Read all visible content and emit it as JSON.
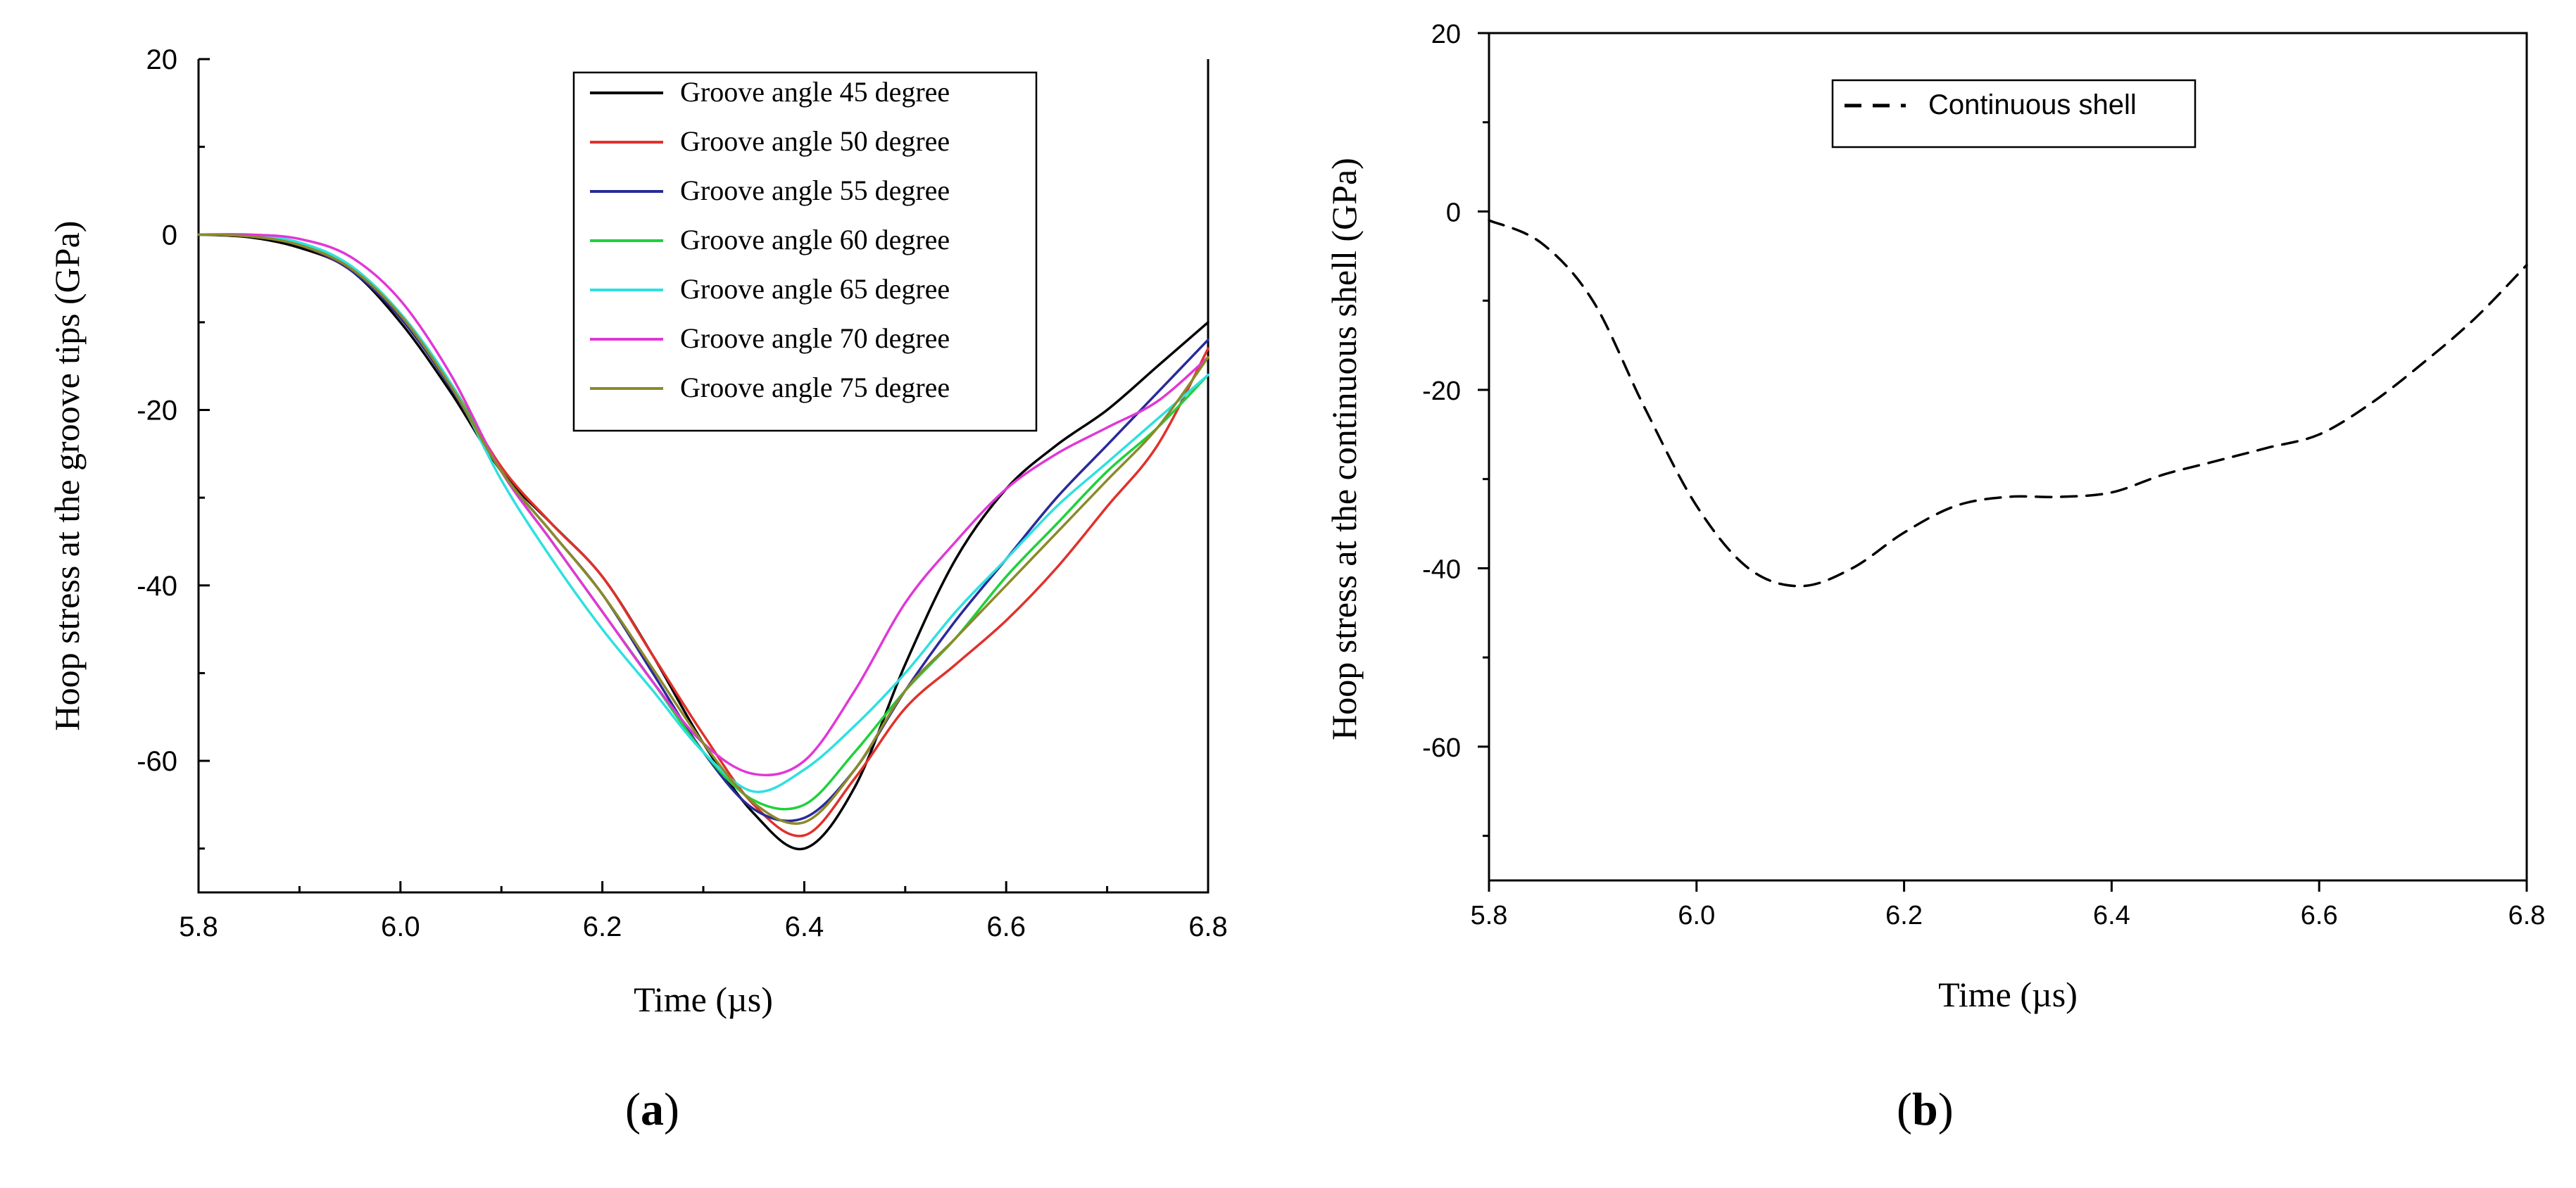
{
  "chart_data": [
    {
      "panel": "a",
      "panel_label": "(a)",
      "panel_label_open": "(",
      "panel_label_letter": "a",
      "panel_label_close": ")",
      "type": "line",
      "xlabel": "Time (µs)",
      "ylabel": "Hoop stress at the groove tips (GPa)",
      "xlim": [
        5.8,
        6.8
      ],
      "ylim": [
        -75,
        20
      ],
      "xticks": [
        "5.8",
        "6.0",
        "6.2",
        "6.4",
        "6.6",
        "6.8"
      ],
      "yticks": [
        "20",
        "0",
        "-20",
        "-40",
        "-60"
      ],
      "legend_position": "top-right",
      "x": [
        5.8,
        5.85,
        5.9,
        5.95,
        6.0,
        6.05,
        6.1,
        6.15,
        6.2,
        6.25,
        6.3,
        6.35,
        6.4,
        6.45,
        6.5,
        6.55,
        6.6,
        6.65,
        6.7,
        6.75,
        6.8
      ],
      "series": [
        {
          "name": "Groove angle 45 degree",
          "color": "#000000",
          "values": [
            0,
            -0.3,
            -1.5,
            -4,
            -10,
            -18,
            -27,
            -33,
            -39,
            -48,
            -58,
            -66,
            -70,
            -63,
            -49,
            -37,
            -29,
            -24,
            -20,
            -15,
            -10
          ]
        },
        {
          "name": "Groove angle 50 degree",
          "color": "#e0312b",
          "values": [
            0,
            -0.2,
            -1.2,
            -4,
            -9,
            -17,
            -26.5,
            -33,
            -39,
            -48,
            -57,
            -65,
            -68.5,
            -62,
            -54,
            -49,
            -44,
            -38,
            -31,
            -24,
            -13
          ]
        },
        {
          "name": "Groove angle 55 degree",
          "color": "#2a2a9a",
          "values": [
            0,
            -0.2,
            -1.2,
            -4,
            -9.5,
            -17.5,
            -27,
            -34,
            -41,
            -50,
            -59,
            -65.5,
            -66.5,
            -61,
            -52,
            -44,
            -37,
            -30,
            -24,
            -18,
            -12
          ]
        },
        {
          "name": "Groove angle 60 degree",
          "color": "#1fd13c",
          "values": [
            0,
            -0.1,
            -1,
            -3.5,
            -9,
            -17,
            -27,
            -35,
            -43,
            -51,
            -59,
            -64.5,
            -65,
            -59,
            -52,
            -46,
            -39,
            -33,
            -27,
            -22,
            -16
          ]
        },
        {
          "name": "Groove angle 65 degree",
          "color": "#2fe0e0",
          "values": [
            0,
            -0.1,
            -0.9,
            -3.5,
            -9,
            -17,
            -28,
            -37,
            -45,
            -52,
            -59,
            -63.5,
            -61,
            -56,
            -50,
            -43,
            -37,
            -31,
            -26,
            -21,
            -16
          ]
        },
        {
          "name": "Groove angle 70 degree",
          "color": "#e038d6",
          "values": [
            0,
            0,
            -0.5,
            -2.5,
            -7.5,
            -16,
            -27,
            -35,
            -43,
            -51,
            -58,
            -61.5,
            -60,
            -52,
            -42,
            -35,
            -29,
            -25,
            -22,
            -19,
            -14
          ]
        },
        {
          "name": "Groove angle 75 degree",
          "color": "#8a8a2a",
          "values": [
            0,
            -0.2,
            -1.2,
            -3.8,
            -9.2,
            -17.3,
            -27,
            -34,
            -41,
            -49.5,
            -58,
            -64.8,
            -67,
            -61,
            -52,
            -46,
            -40,
            -34,
            -28,
            -22,
            -14
          ]
        }
      ]
    },
    {
      "panel": "b",
      "panel_label": "(b)",
      "panel_label_open": "(",
      "panel_label_letter": "b",
      "panel_label_close": ")",
      "type": "line",
      "xlabel": "Time (µs)",
      "ylabel": "Hoop stress at the continuous shell (GPa)",
      "xlim": [
        5.8,
        6.8
      ],
      "ylim": [
        -75,
        20
      ],
      "xticks": [
        "5.8",
        "6.0",
        "6.2",
        "6.4",
        "6.6",
        "6.8"
      ],
      "yticks": [
        "20",
        "0",
        "-20",
        "-40",
        "-60"
      ],
      "legend_position": "top-left",
      "x": [
        5.8,
        5.85,
        5.9,
        5.95,
        6.0,
        6.05,
        6.1,
        6.15,
        6.2,
        6.25,
        6.3,
        6.35,
        6.4,
        6.45,
        6.5,
        6.55,
        6.6,
        6.65,
        6.7,
        6.75,
        6.8
      ],
      "series": [
        {
          "name": "Continuous shell",
          "color": "#000000",
          "dash": "dashed",
          "values": [
            -1,
            -3.5,
            -10,
            -22,
            -33,
            -40,
            -42,
            -40,
            -36,
            -33,
            -32,
            -32,
            -31.5,
            -29.5,
            -28,
            -26.5,
            -25,
            -21.5,
            -17,
            -12,
            -6
          ]
        }
      ]
    }
  ]
}
